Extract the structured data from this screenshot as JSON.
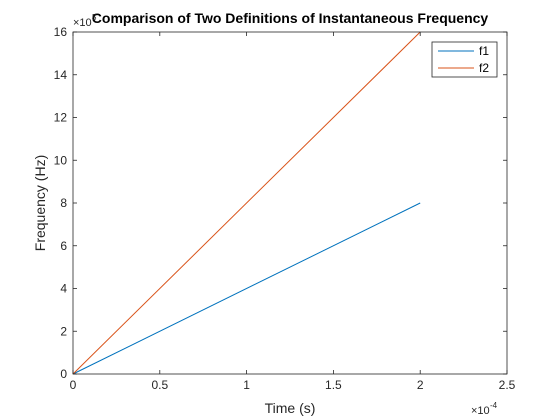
{
  "chart_data": {
    "type": "line",
    "title": "Comparison of Two Definitions of Instantaneous Frequency",
    "xlabel": "Time (s)",
    "ylabel": "Frequency (Hz)",
    "x_multiplier": {
      "times": "×10",
      "exp": "-4"
    },
    "y_multiplier": {
      "times": "×10",
      "exp": "5"
    },
    "xlim": [
      0,
      2.5
    ],
    "ylim": [
      0,
      16
    ],
    "x_ticks": [
      "0",
      "0.5",
      "1",
      "1.5",
      "2",
      "2.5"
    ],
    "y_ticks": [
      "0",
      "2",
      "4",
      "6",
      "8",
      "10",
      "12",
      "14",
      "16"
    ],
    "grid": false,
    "legend_location": "top-right",
    "series": [
      {
        "name": "f1",
        "color": "#0072BD",
        "x": [
          0,
          2
        ],
        "y": [
          0,
          8
        ]
      },
      {
        "name": "f2",
        "color": "#D95319",
        "x": [
          0,
          2
        ],
        "y": [
          0,
          16
        ]
      }
    ]
  }
}
